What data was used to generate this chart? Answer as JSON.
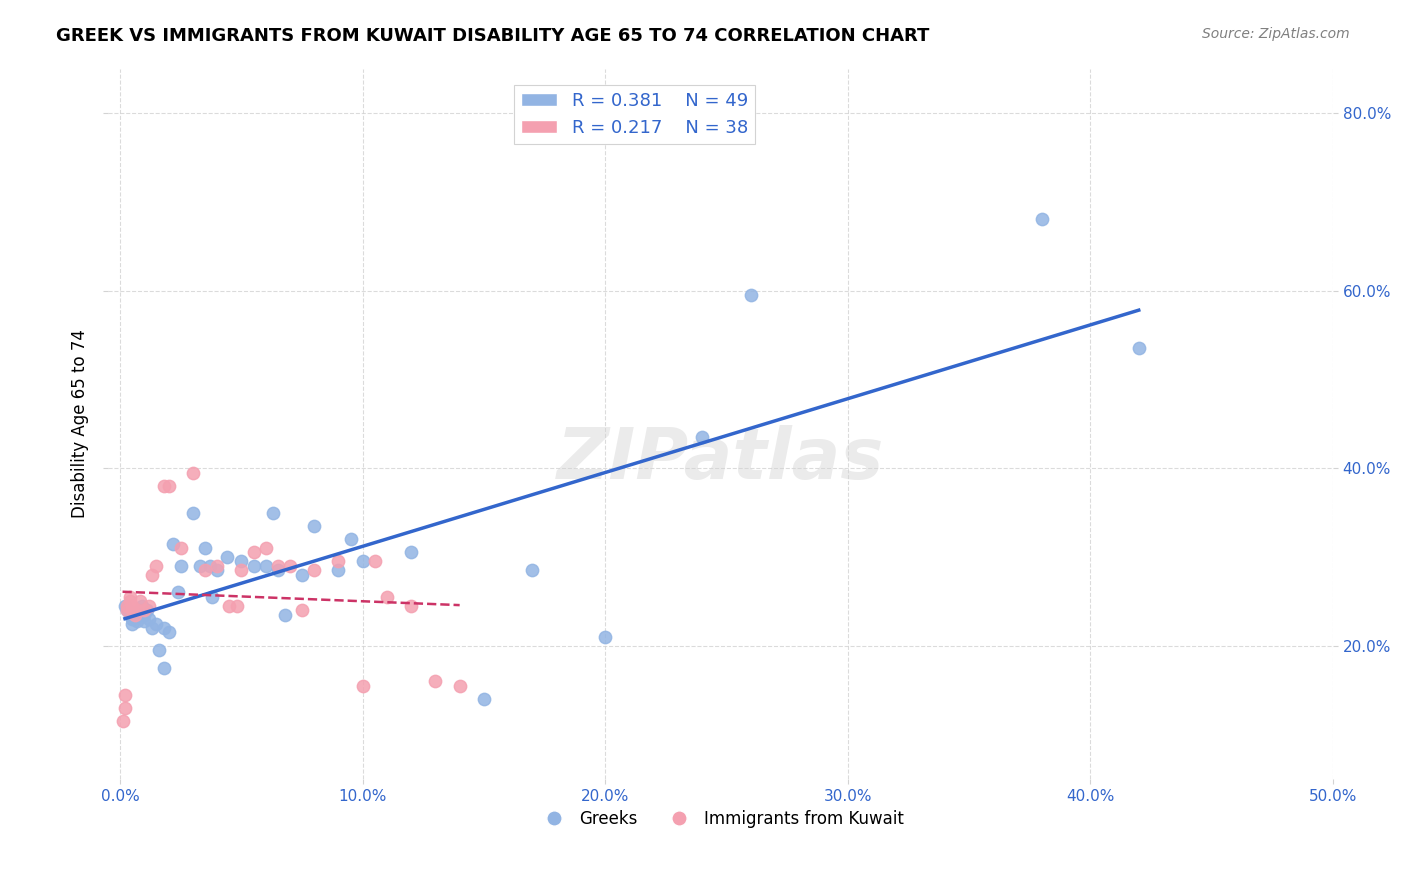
{
  "title": "GREEK VS IMMIGRANTS FROM KUWAIT DISABILITY AGE 65 TO 74 CORRELATION CHART",
  "source": "Source: ZipAtlas.com",
  "xlabel": "",
  "ylabel": "Disability Age 65 to 74",
  "xlim": [
    0.0,
    0.5
  ],
  "ylim": [
    0.05,
    0.85
  ],
  "xticks": [
    0.0,
    0.1,
    0.2,
    0.3,
    0.4,
    0.5
  ],
  "yticks": [
    0.2,
    0.4,
    0.6,
    0.8
  ],
  "xticklabels": [
    "0.0%",
    "10.0%",
    "20.0%",
    "30.0%",
    "40.0%",
    "50.0%"
  ],
  "yticklabels": [
    "20.0%",
    "40.0%",
    "60.0%",
    "80.0%"
  ],
  "legend_r1": "R = 0.381",
  "legend_n1": "N = 49",
  "legend_r2": "R = 0.217",
  "legend_n2": "N = 38",
  "blue_color": "#92b4e3",
  "pink_color": "#f4a0b0",
  "blue_line_color": "#3366cc",
  "pink_line_color": "#cc3366",
  "watermark": "ZIPatlas",
  "blue_scatter_x": [
    0.002,
    0.003,
    0.004,
    0.005,
    0.005,
    0.006,
    0.007,
    0.007,
    0.008,
    0.009,
    0.01,
    0.01,
    0.011,
    0.012,
    0.013,
    0.015,
    0.016,
    0.018,
    0.018,
    0.02,
    0.022,
    0.024,
    0.025,
    0.03,
    0.033,
    0.035,
    0.037,
    0.038,
    0.04,
    0.044,
    0.05,
    0.055,
    0.06,
    0.063,
    0.065,
    0.068,
    0.075,
    0.08,
    0.09,
    0.095,
    0.1,
    0.12,
    0.15,
    0.17,
    0.2,
    0.24,
    0.26,
    0.38,
    0.42
  ],
  "blue_scatter_y": [
    0.245,
    0.24,
    0.235,
    0.225,
    0.23,
    0.235,
    0.228,
    0.232,
    0.24,
    0.245,
    0.235,
    0.228,
    0.24,
    0.23,
    0.22,
    0.225,
    0.195,
    0.175,
    0.22,
    0.215,
    0.315,
    0.26,
    0.29,
    0.35,
    0.29,
    0.31,
    0.29,
    0.255,
    0.285,
    0.3,
    0.295,
    0.29,
    0.29,
    0.35,
    0.285,
    0.235,
    0.28,
    0.335,
    0.285,
    0.32,
    0.295,
    0.305,
    0.14,
    0.285,
    0.21,
    0.435,
    0.595,
    0.68,
    0.535
  ],
  "pink_scatter_x": [
    0.001,
    0.002,
    0.002,
    0.003,
    0.003,
    0.004,
    0.004,
    0.005,
    0.005,
    0.006,
    0.007,
    0.008,
    0.01,
    0.012,
    0.013,
    0.015,
    0.018,
    0.02,
    0.025,
    0.03,
    0.035,
    0.04,
    0.045,
    0.048,
    0.05,
    0.055,
    0.06,
    0.065,
    0.07,
    0.075,
    0.08,
    0.09,
    0.1,
    0.105,
    0.11,
    0.12,
    0.13,
    0.14
  ],
  "pink_scatter_y": [
    0.115,
    0.13,
    0.145,
    0.245,
    0.24,
    0.25,
    0.255,
    0.245,
    0.24,
    0.235,
    0.24,
    0.25,
    0.24,
    0.245,
    0.28,
    0.29,
    0.38,
    0.38,
    0.31,
    0.395,
    0.285,
    0.29,
    0.245,
    0.245,
    0.285,
    0.305,
    0.31,
    0.29,
    0.29,
    0.24,
    0.285,
    0.295,
    0.155,
    0.295,
    0.255,
    0.245,
    0.16,
    0.155
  ]
}
